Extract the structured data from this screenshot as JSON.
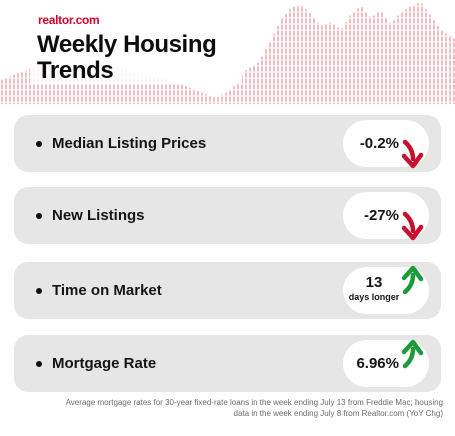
{
  "header": {
    "brand": "realtor.com",
    "title_line1": "Weekly Housing",
    "title_line2": "Trends"
  },
  "colors": {
    "brand": "#d6002a",
    "card_bg": "#e6e6e6",
    "arrow_down": "#c8102e",
    "arrow_up": "#1f9a3a",
    "chart_bars": "#e9a7ad"
  },
  "metrics": [
    {
      "label": "Median Listing Prices",
      "value": "-0.2%",
      "direction": "down",
      "icon": "down-arrow-icon"
    },
    {
      "label": "New Listings",
      "value": "-27%",
      "direction": "down",
      "icon": "down-arrow-icon"
    },
    {
      "label": "Time on Market",
      "value": "13",
      "value_sub": "days longer",
      "direction": "up",
      "icon": "up-arrow-icon"
    },
    {
      "label": "Mortgage Rate",
      "value": "6.96%",
      "direction": "up",
      "icon": "up-arrow-icon"
    }
  ],
  "footnote": {
    "line1": "Average mortgage rates for 30-year fixed-rate loans in the week ending July 13 from Freddie Mac; housing",
    "line2": "data in the week ending July 8 from Realtor.com (YoY Chg)"
  }
}
